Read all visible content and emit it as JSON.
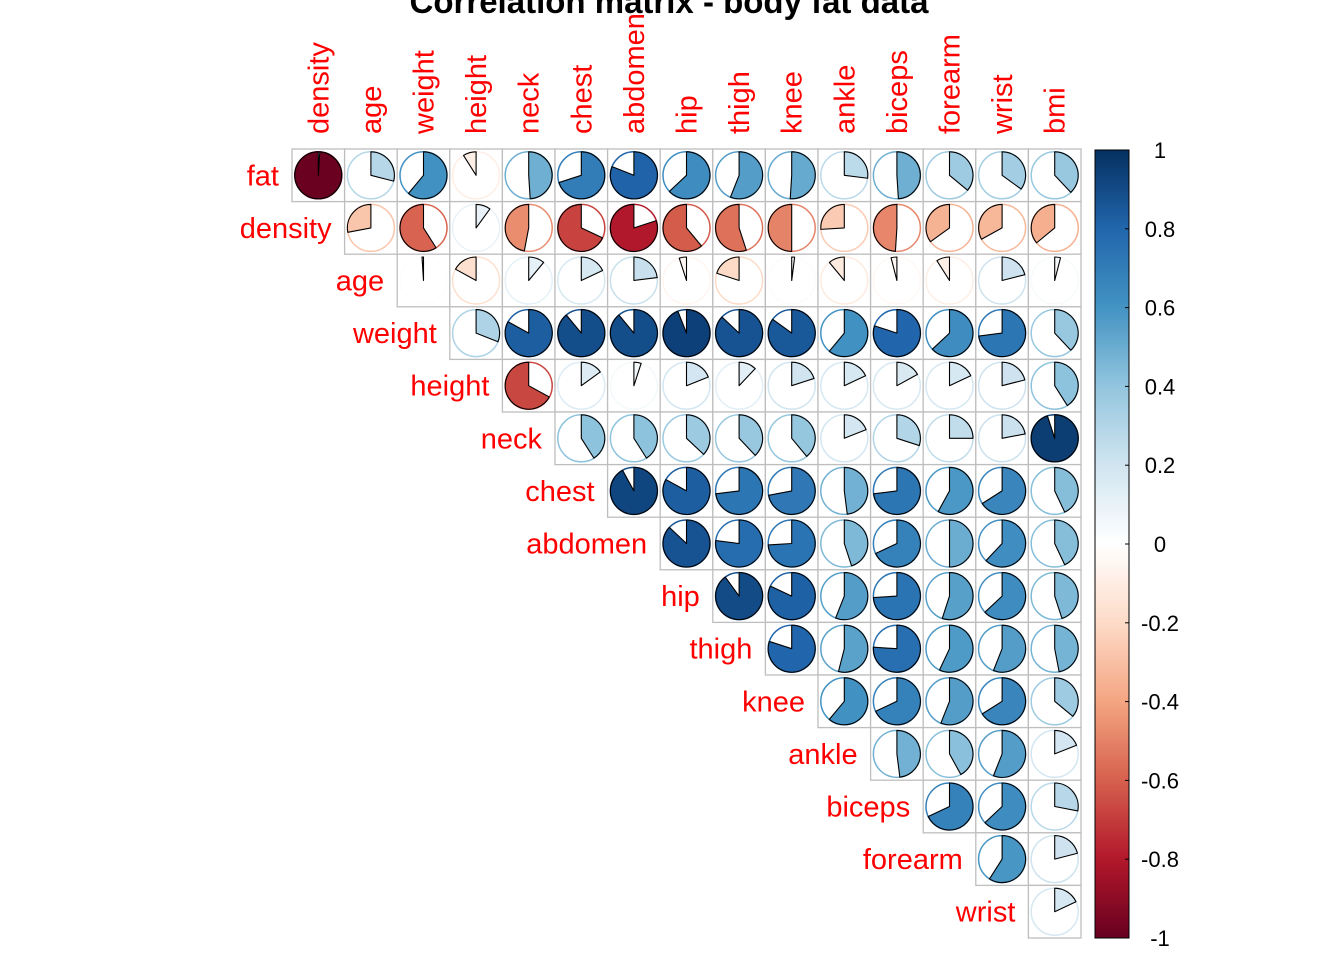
{
  "chart_data": {
    "type": "heatmap",
    "style": "pie",
    "layout": "upper-triangular",
    "title": "Correlation matrix - body fat data",
    "row_labels": [
      "fat",
      "density",
      "age",
      "weight",
      "height",
      "neck",
      "chest",
      "abdomen",
      "hip",
      "thigh",
      "knee",
      "ankle",
      "biceps",
      "forearm",
      "wrist"
    ],
    "col_labels": [
      "density",
      "age",
      "weight",
      "height",
      "neck",
      "chest",
      "abdomen",
      "hip",
      "thigh",
      "knee",
      "ankle",
      "biceps",
      "forearm",
      "wrist",
      "bmi"
    ],
    "label_color": "#FF0000",
    "cell_border_color": "#BEBEBE",
    "colorscale": {
      "min": -1,
      "max": 1,
      "ticks": [
        "1",
        "0.8",
        "0.6",
        "0.4",
        "0.2",
        "0",
        "-0.2",
        "-0.4",
        "-0.6",
        "-0.8",
        "-1"
      ],
      "colors": [
        "#67001F",
        "#B2182B",
        "#D6604D",
        "#F4A582",
        "#FDDBC7",
        "#FFFFFF",
        "#D1E5F0",
        "#92C5DE",
        "#4393C3",
        "#2166AC",
        "#053061"
      ]
    },
    "values": [
      [
        -0.99,
        0.29,
        0.61,
        -0.09,
        0.49,
        0.7,
        0.81,
        0.63,
        0.56,
        0.51,
        0.27,
        0.49,
        0.36,
        0.35,
        0.38
      ],
      [
        null,
        -0.28,
        -0.59,
        0.1,
        -0.47,
        -0.68,
        -0.8,
        -0.61,
        -0.55,
        -0.5,
        -0.26,
        -0.49,
        -0.35,
        -0.33,
        -0.36
      ],
      [
        null,
        null,
        -0.01,
        -0.17,
        0.11,
        0.18,
        0.23,
        -0.05,
        -0.2,
        0.02,
        -0.11,
        -0.04,
        -0.09,
        0.21,
        0.04
      ],
      [
        null,
        null,
        null,
        0.31,
        0.83,
        0.89,
        0.89,
        0.94,
        0.87,
        0.85,
        0.61,
        0.8,
        0.63,
        0.73,
        0.38
      ],
      [
        null,
        null,
        null,
        null,
        -0.67,
        0.15,
        0.05,
        0.19,
        0.12,
        0.2,
        0.18,
        0.17,
        0.18,
        0.21,
        0.41
      ],
      [
        null,
        null,
        null,
        null,
        null,
        0.41,
        0.41,
        0.37,
        0.38,
        0.39,
        0.19,
        0.3,
        0.25,
        0.22,
        0.95
      ],
      [
        null,
        null,
        null,
        null,
        null,
        null,
        0.92,
        0.83,
        0.73,
        0.72,
        0.48,
        0.73,
        0.58,
        0.66,
        0.43
      ],
      [
        null,
        null,
        null,
        null,
        null,
        null,
        null,
        0.87,
        0.77,
        0.74,
        0.45,
        0.68,
        0.5,
        0.62,
        0.43
      ],
      [
        null,
        null,
        null,
        null,
        null,
        null,
        null,
        null,
        0.9,
        0.82,
        0.56,
        0.74,
        0.55,
        0.63,
        0.45
      ],
      [
        null,
        null,
        null,
        null,
        null,
        null,
        null,
        null,
        null,
        0.8,
        0.54,
        0.76,
        0.57,
        0.56,
        0.47
      ],
      [
        null,
        null,
        null,
        null,
        null,
        null,
        null,
        null,
        null,
        null,
        0.61,
        0.68,
        0.56,
        0.66,
        0.36
      ],
      [
        null,
        null,
        null,
        null,
        null,
        null,
        null,
        null,
        null,
        null,
        null,
        0.48,
        0.42,
        0.56,
        0.19
      ],
      [
        null,
        null,
        null,
        null,
        null,
        null,
        null,
        null,
        null,
        null,
        null,
        null,
        0.68,
        0.63,
        0.28
      ],
      [
        null,
        null,
        null,
        null,
        null,
        null,
        null,
        null,
        null,
        null,
        null,
        null,
        null,
        0.59,
        0.21
      ],
      [
        null,
        null,
        null,
        null,
        null,
        null,
        null,
        null,
        null,
        null,
        null,
        null,
        null,
        null,
        0.18
      ]
    ]
  }
}
